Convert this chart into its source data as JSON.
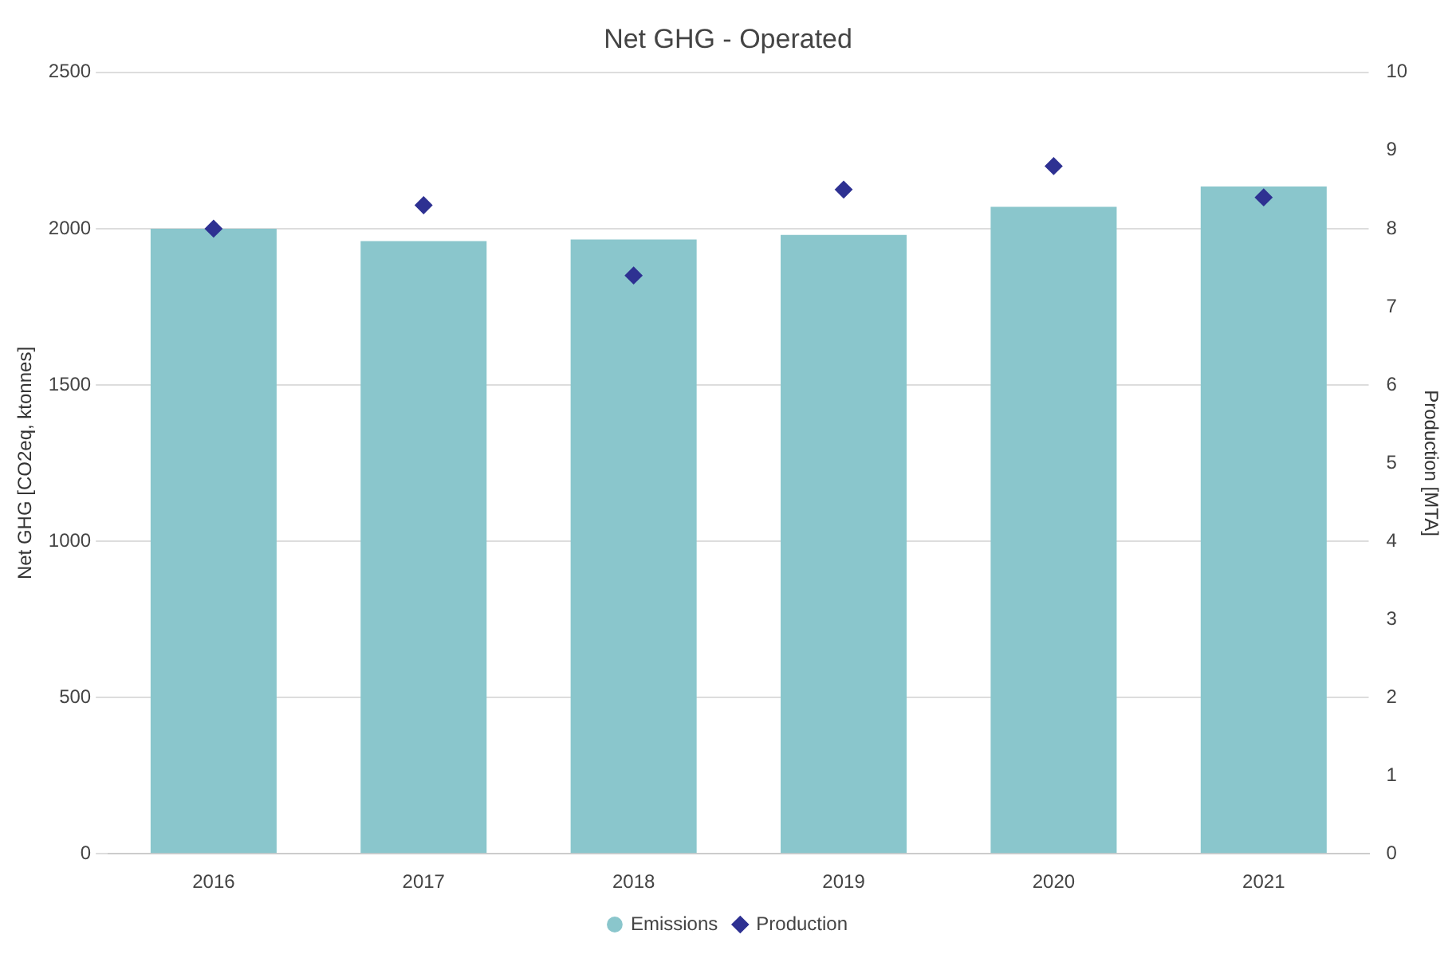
{
  "chart_data": {
    "type": "bar",
    "title": "Net GHG - Operated",
    "ylabel": "Net GHG [CO2eq, ktonnes]",
    "y2label": "Production [MTA]",
    "categories": [
      "2016",
      "2017",
      "2018",
      "2019",
      "2020",
      "2021"
    ],
    "series": [
      {
        "name": "Emissions",
        "color": "#8ac6cc",
        "values": [
          2000,
          1960,
          1965,
          1980,
          2070,
          2135
        ]
      },
      {
        "name": "Production",
        "type": "scatter",
        "axis": "y2",
        "marker": "diamond",
        "color": "#2e3192",
        "values": [
          8.0,
          8.3,
          7.4,
          8.5,
          8.8,
          8.4
        ]
      }
    ],
    "ylim": [
      0,
      2500
    ],
    "yticks": [
      0,
      500,
      1000,
      1500,
      2000,
      2500
    ],
    "y2lim": [
      0,
      10
    ],
    "y2ticks": [
      0,
      1,
      2,
      3,
      4,
      5,
      6,
      7,
      8,
      9,
      10
    ],
    "grid": "y",
    "legend": "bottom"
  }
}
